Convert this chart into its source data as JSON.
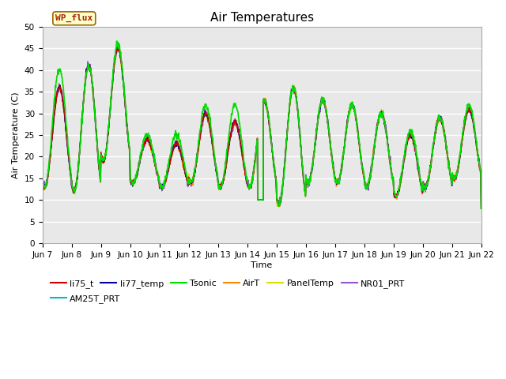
{
  "title": "Air Temperatures",
  "xlabel": "Time",
  "ylabel": "Air Temperature (C)",
  "ylim": [
    0,
    50
  ],
  "yticks": [
    0,
    5,
    10,
    15,
    20,
    25,
    30,
    35,
    40,
    45,
    50
  ],
  "background_color": "#e8e8e8",
  "figure_color": "#ffffff",
  "grid_color": "#ffffff",
  "series": {
    "li75_t": {
      "color": "#cc0000",
      "lw": 1.0
    },
    "li77_temp": {
      "color": "#000099",
      "lw": 1.0
    },
    "Tsonic": {
      "color": "#00dd00",
      "lw": 1.2
    },
    "AirT": {
      "color": "#ff8800",
      "lw": 1.0
    },
    "PanelTemp": {
      "color": "#dddd00",
      "lw": 1.0
    },
    "NR01_PRT": {
      "color": "#9955cc",
      "lw": 1.0
    },
    "AM25T_PRT": {
      "color": "#00bbcc",
      "lw": 1.0
    }
  },
  "annotation": {
    "text": "WP_flux",
    "facecolor": "#ffffcc",
    "edgecolor": "#996600",
    "textcolor": "#aa2200",
    "fontsize": 8,
    "fontfamily": "monospace"
  },
  "x_tick_labels": [
    "Jun 7",
    "Jun 8",
    "Jun 9",
    "Jun 10",
    "Jun 11",
    "Jun 12",
    "Jun 13",
    "Jun 14",
    "Jun 15",
    "Jun 16",
    "Jun 17",
    "Jun 18",
    "Jun 19",
    "Jun 20",
    "Jun 21",
    "Jun 22"
  ],
  "title_fontsize": 11,
  "axis_fontsize": 8,
  "tick_fontsize": 7.5,
  "legend_fontsize": 8,
  "day_peaks": [
    36,
    41,
    45,
    24,
    23,
    30,
    28,
    33,
    36,
    33,
    32,
    30,
    25,
    29,
    31
  ],
  "tsonic_peaks": [
    40,
    41,
    46,
    25,
    25,
    32,
    32,
    33,
    36,
    33,
    32,
    30,
    26,
    29,
    32
  ],
  "night_mins": [
    13,
    12,
    19,
    14,
    13,
    14,
    13,
    13,
    9,
    14,
    14,
    13,
    11,
    13,
    15
  ],
  "n_days": 15,
  "pts_per_day": 96
}
